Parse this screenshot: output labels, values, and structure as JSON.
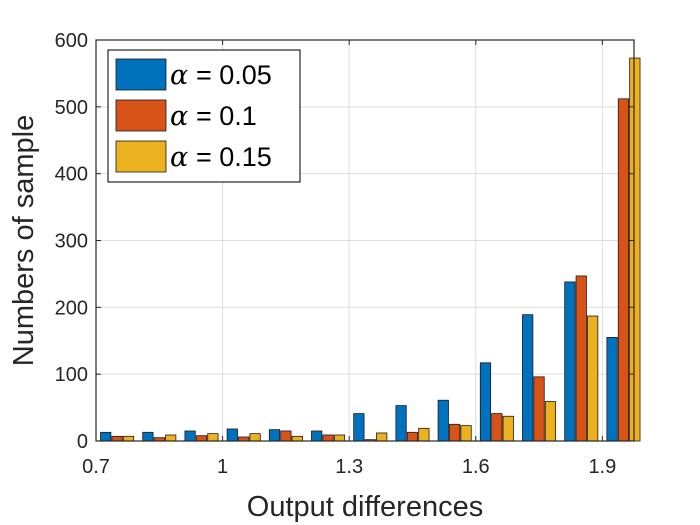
{
  "chart_data": {
    "type": "bar",
    "title": "",
    "xlabel": "Output differences",
    "ylabel": "Numbers of sample",
    "xlim": [
      0.7,
      1.975
    ],
    "ylim": [
      0,
      600
    ],
    "xticks": [
      "0.7",
      "1",
      "1.3",
      "1.6",
      "1.9"
    ],
    "xtick_values": [
      0.7,
      1.0,
      1.3,
      1.6,
      1.9
    ],
    "yticks": [
      "0",
      "100",
      "200",
      "300",
      "400",
      "500",
      "600"
    ],
    "ytick_values": [
      0,
      100,
      200,
      300,
      400,
      500,
      600
    ],
    "grid": true,
    "legend_position": "top-left",
    "x": [
      0.75,
      0.85,
      0.95,
      1.05,
      1.15,
      1.25,
      1.35,
      1.45,
      1.55,
      1.65,
      1.75,
      1.85,
      1.95
    ],
    "series": [
      {
        "name": "= 0.05",
        "symbol": "α",
        "color": "#0072BD",
        "values": [
          13,
          13,
          15,
          18,
          17,
          15,
          41,
          53,
          61,
          117,
          189,
          238,
          155
        ]
      },
      {
        "name": "= 0.1",
        "symbol": "α",
        "color": "#D95319",
        "values": [
          7,
          5,
          8,
          6,
          15,
          9,
          2,
          13,
          25,
          41,
          96,
          247,
          512
        ]
      },
      {
        "name": "= 0.15",
        "symbol": "α",
        "color": "#EDB120",
        "values": [
          7,
          9,
          11,
          11,
          7,
          9,
          12,
          19,
          23,
          37,
          59,
          187,
          573
        ]
      }
    ]
  }
}
